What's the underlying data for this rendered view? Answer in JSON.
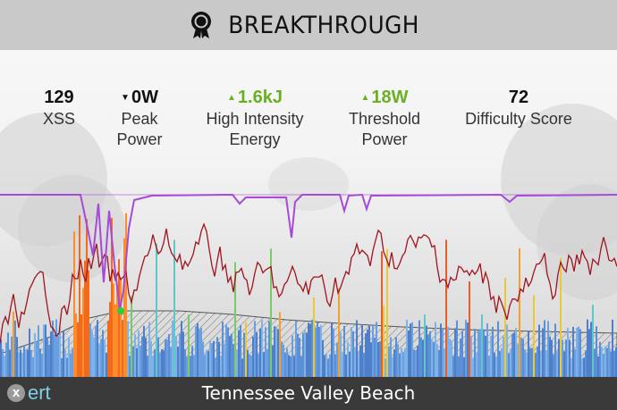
{
  "header": {
    "title": "BREAKTHROUGH",
    "icon": "award-icon"
  },
  "stats": [
    {
      "value": "129",
      "label_1": "XSS",
      "label_2": "",
      "arrow": "none",
      "color": "#111111"
    },
    {
      "value": "0W",
      "label_1": "Peak",
      "label_2": "Power",
      "arrow": "down",
      "color": "#111111"
    },
    {
      "value": "1.6kJ",
      "label_1": "High Intensity",
      "label_2": "Energy",
      "arrow": "up",
      "color": "#6ab023"
    },
    {
      "value": "18W",
      "label_1": "Threshold",
      "label_2": "Power",
      "arrow": "up",
      "color": "#6ab023"
    },
    {
      "value": "72",
      "label_1": "Difficulty Score",
      "label_2": "",
      "arrow": "none",
      "color": "#111111"
    }
  ],
  "footer": {
    "logo_text": "ert",
    "logo_mark": "x",
    "activity_name": "Tennessee Valley Beach"
  },
  "colors": {
    "header_bg": "#c9c9c9",
    "footer_bg": "#3a3a3a",
    "accent_green": "#6ab023",
    "mpa_line": "#a64ad8",
    "power_line": "#a0141e",
    "logo": "#7fd0e8"
  }
}
